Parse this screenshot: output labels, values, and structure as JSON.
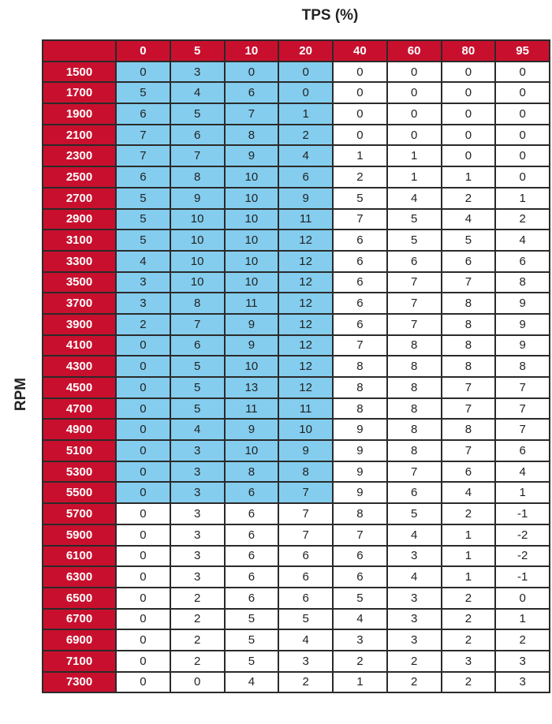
{
  "chart_data": {
    "type": "table",
    "title": "TPS (%)",
    "row_axis_label": "RPM",
    "colors": {
      "header": "#c8102e",
      "highlight": "#84cdee",
      "cell": "#ffffff"
    },
    "highlight_region": {
      "columns": [
        "0",
        "5",
        "10",
        "20"
      ],
      "rows_from": "1500",
      "rows_to": "5500"
    },
    "columns": [
      "0",
      "5",
      "10",
      "20",
      "40",
      "60",
      "80",
      "95"
    ],
    "rows": [
      {
        "rpm": "1500",
        "values": [
          0,
          3,
          0,
          0,
          0,
          0,
          0,
          0
        ]
      },
      {
        "rpm": "1700",
        "values": [
          5,
          4,
          6,
          0,
          0,
          0,
          0,
          0
        ]
      },
      {
        "rpm": "1900",
        "values": [
          6,
          5,
          7,
          1,
          0,
          0,
          0,
          0
        ]
      },
      {
        "rpm": "2100",
        "values": [
          7,
          6,
          8,
          2,
          0,
          0,
          0,
          0
        ]
      },
      {
        "rpm": "2300",
        "values": [
          7,
          7,
          9,
          4,
          1,
          1,
          0,
          0
        ]
      },
      {
        "rpm": "2500",
        "values": [
          6,
          8,
          10,
          6,
          2,
          1,
          1,
          0
        ]
      },
      {
        "rpm": "2700",
        "values": [
          5,
          9,
          10,
          9,
          5,
          4,
          2,
          1
        ]
      },
      {
        "rpm": "2900",
        "values": [
          5,
          10,
          10,
          11,
          7,
          5,
          4,
          2
        ]
      },
      {
        "rpm": "3100",
        "values": [
          5,
          10,
          10,
          12,
          6,
          5,
          5,
          4
        ]
      },
      {
        "rpm": "3300",
        "values": [
          4,
          10,
          10,
          12,
          6,
          6,
          6,
          6
        ]
      },
      {
        "rpm": "3500",
        "values": [
          3,
          10,
          10,
          12,
          6,
          7,
          7,
          8
        ]
      },
      {
        "rpm": "3700",
        "values": [
          3,
          8,
          11,
          12,
          6,
          7,
          8,
          9
        ]
      },
      {
        "rpm": "3900",
        "values": [
          2,
          7,
          9,
          12,
          6,
          7,
          8,
          9
        ]
      },
      {
        "rpm": "4100",
        "values": [
          0,
          6,
          9,
          12,
          7,
          8,
          8,
          9
        ]
      },
      {
        "rpm": "4300",
        "values": [
          0,
          5,
          10,
          12,
          8,
          8,
          8,
          8
        ]
      },
      {
        "rpm": "4500",
        "values": [
          0,
          5,
          13,
          12,
          8,
          8,
          7,
          7
        ]
      },
      {
        "rpm": "4700",
        "values": [
          0,
          5,
          11,
          11,
          8,
          8,
          7,
          7
        ]
      },
      {
        "rpm": "4900",
        "values": [
          0,
          4,
          9,
          10,
          9,
          8,
          8,
          7
        ]
      },
      {
        "rpm": "5100",
        "values": [
          0,
          3,
          10,
          9,
          9,
          8,
          7,
          6
        ]
      },
      {
        "rpm": "5300",
        "values": [
          0,
          3,
          8,
          8,
          9,
          7,
          6,
          4
        ]
      },
      {
        "rpm": "5500",
        "values": [
          0,
          3,
          6,
          7,
          9,
          6,
          4,
          1
        ]
      },
      {
        "rpm": "5700",
        "values": [
          0,
          3,
          6,
          7,
          8,
          5,
          2,
          -1
        ]
      },
      {
        "rpm": "5900",
        "values": [
          0,
          3,
          6,
          7,
          7,
          4,
          1,
          -2
        ]
      },
      {
        "rpm": "6100",
        "values": [
          0,
          3,
          6,
          6,
          6,
          3,
          1,
          -2
        ]
      },
      {
        "rpm": "6300",
        "values": [
          0,
          3,
          6,
          6,
          6,
          4,
          1,
          -1
        ]
      },
      {
        "rpm": "6500",
        "values": [
          0,
          2,
          6,
          6,
          5,
          3,
          2,
          0
        ]
      },
      {
        "rpm": "6700",
        "values": [
          0,
          2,
          5,
          5,
          4,
          3,
          2,
          1
        ]
      },
      {
        "rpm": "6900",
        "values": [
          0,
          2,
          5,
          4,
          3,
          3,
          2,
          2
        ]
      },
      {
        "rpm": "7100",
        "values": [
          0,
          2,
          5,
          3,
          2,
          2,
          3,
          3
        ]
      },
      {
        "rpm": "7300",
        "values": [
          0,
          0,
          4,
          2,
          1,
          2,
          2,
          3
        ]
      }
    ]
  }
}
